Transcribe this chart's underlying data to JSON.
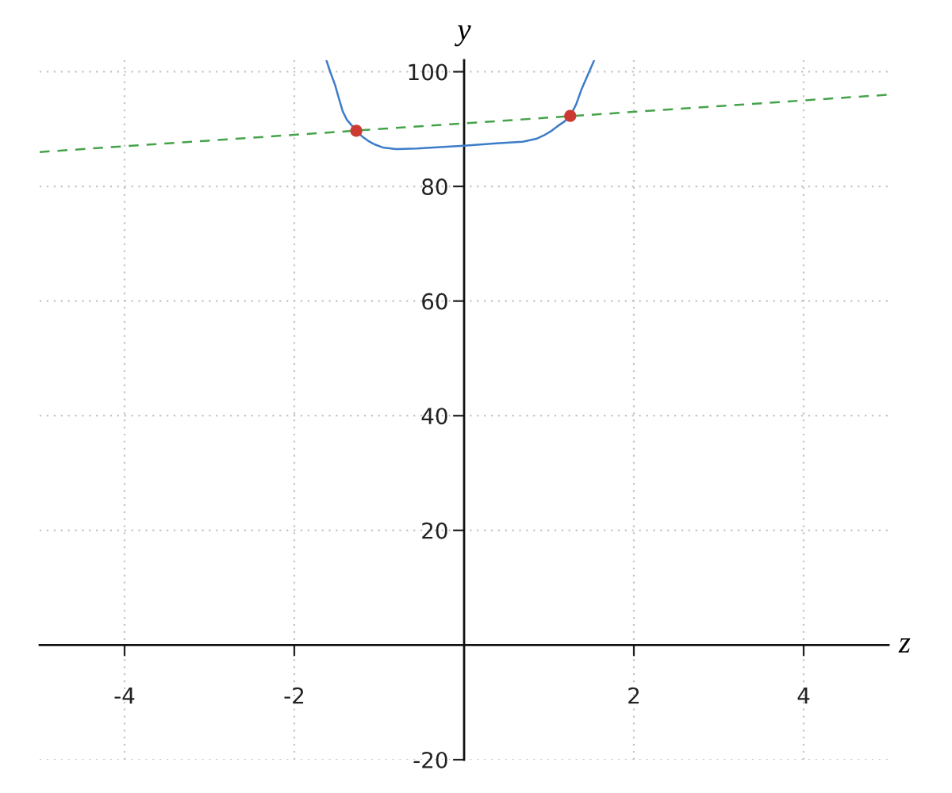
{
  "chart_data": {
    "type": "line",
    "xlabel": "z",
    "ylabel": "y",
    "xlim": [
      -5,
      5
    ],
    "ylim": [
      -20,
      102
    ],
    "xticks": [
      -4,
      -2,
      2,
      4
    ],
    "yticks": [
      -20,
      20,
      40,
      60,
      80,
      100
    ],
    "grid": true,
    "series": [
      {
        "color": "#3d7cc9",
        "x": [
          -1.62,
          -1.58,
          -1.52,
          -1.48,
          -1.43,
          -1.38,
          -1.27,
          -1.2,
          -1.115,
          -1.05,
          -0.96,
          -0.8,
          -0.555,
          -0.24,
          0,
          0.38,
          0.69,
          0.85,
          0.94,
          1.02,
          1.1,
          1.18,
          1.25,
          1.32,
          1.38,
          1.45,
          1.53
        ],
        "values": [
          101.9,
          100.1,
          97.7,
          95.6,
          93.1,
          91.6,
          89.7,
          88.7,
          87.8,
          87.3,
          86.8,
          86.5,
          86.6,
          86.9,
          87.1,
          87.5,
          87.8,
          88.3,
          88.9,
          89.6,
          90.5,
          91.3,
          92.3,
          94.3,
          96.8,
          99.2,
          101.9
        ]
      },
      {
        "color": "#45a34a",
        "line_style": "dashed",
        "x": [
          -5,
          5
        ],
        "values": [
          86,
          96
        ]
      },
      {
        "type": "scatter",
        "color": "#cc3b33",
        "marker": "circle",
        "x": [
          -1.27,
          1.25
        ],
        "values": [
          89.7,
          92.3
        ]
      }
    ]
  }
}
